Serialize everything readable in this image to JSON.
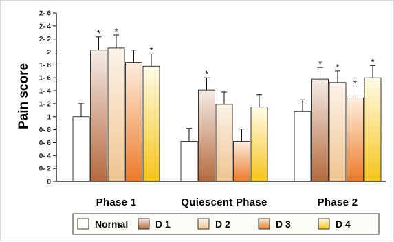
{
  "chart_data": {
    "type": "bar",
    "ylabel": "Pain score",
    "ylim": [
      0,
      2.6
    ],
    "yticks": [
      {
        "value": 0,
        "label": "0"
      },
      {
        "value": 0.2,
        "label": "0- 2"
      },
      {
        "value": 0.4,
        "label": "0- 4"
      },
      {
        "value": 0.6,
        "label": "0- 6"
      },
      {
        "value": 0.8,
        "label": "0- 8"
      },
      {
        "value": 1.0,
        "label": "1"
      },
      {
        "value": 1.2,
        "label": "1- 2"
      },
      {
        "value": 1.4,
        "label": "1- 4"
      },
      {
        "value": 1.6,
        "label": "1- 6"
      },
      {
        "value": 1.8,
        "label": "1- 8"
      },
      {
        "value": 2.0,
        "label": "2"
      },
      {
        "value": 2.2,
        "label": "2- 2"
      },
      {
        "value": 2.4,
        "label": "2- 4"
      },
      {
        "value": 2.6,
        "label": "2- 6"
      }
    ],
    "categories": [
      "Phase  1",
      "Quiescent  Phase",
      "Phase  2"
    ],
    "series": [
      {
        "name": "Normal",
        "color_top": "#ffffff",
        "color_bottom": "#ffffff",
        "values": [
          1.0,
          0.62,
          1.08
        ],
        "errors": [
          0.2,
          0.2,
          0.18
        ],
        "significant": [
          false,
          false,
          false
        ]
      },
      {
        "name": "D 1",
        "color_top": "#f4ece6",
        "color_bottom": "#b56a3e",
        "values": [
          2.03,
          1.41,
          1.58
        ],
        "errors": [
          0.2,
          0.19,
          0.18
        ],
        "significant": [
          true,
          true,
          true
        ]
      },
      {
        "name": "D 2",
        "color_top": "#fcf3ea",
        "color_bottom": "#efc48f",
        "values": [
          2.06,
          1.19,
          1.53
        ],
        "errors": [
          0.2,
          0.19,
          0.18
        ],
        "significant": [
          true,
          false,
          true
        ]
      },
      {
        "name": "D 3",
        "color_top": "#fdeedd",
        "color_bottom": "#ec7a28",
        "values": [
          1.84,
          0.62,
          1.29
        ],
        "errors": [
          0.19,
          0.19,
          0.17
        ],
        "significant": [
          false,
          false,
          true
        ]
      },
      {
        "name": "D 4",
        "color_top": "#fffbe8",
        "color_bottom": "#f5c518",
        "values": [
          1.78,
          1.15,
          1.6
        ],
        "errors": [
          0.19,
          0.19,
          0.19
        ],
        "significant": [
          true,
          false,
          true
        ]
      }
    ],
    "significance_marker": "*",
    "grid": false,
    "legend_position": "bottom"
  }
}
